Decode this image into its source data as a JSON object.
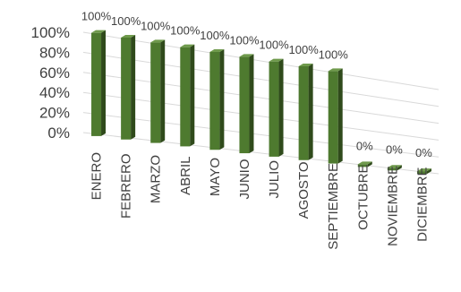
{
  "chart_data": {
    "type": "bar",
    "title": "",
    "xlabel": "",
    "ylabel": "",
    "categories": [
      "ENERO",
      "FEBRERO",
      "MARZO",
      "ABRIL",
      "MAYO",
      "JUNIO",
      "JULIO",
      "AGOSTO",
      "SEPTIEMBRE",
      "OCTUBRE",
      "NOVIEMBRE",
      "DICIEMBRE"
    ],
    "values": [
      1,
      1,
      1,
      1,
      1,
      1,
      1,
      1,
      1,
      0,
      0,
      0
    ],
    "data_labels": [
      "100%",
      "100%",
      "100%",
      "100%",
      "100%",
      "100%",
      "100%",
      "100%",
      "100%",
      "0%",
      "0%",
      "0%"
    ],
    "y_ticks": [
      {
        "value": 0,
        "label": "0%"
      },
      {
        "value": 0.2,
        "label": "20%"
      },
      {
        "value": 0.4,
        "label": "40%"
      },
      {
        "value": 0.6,
        "label": "60%"
      },
      {
        "value": 0.8,
        "label": "80%"
      },
      {
        "value": 1,
        "label": "100%"
      }
    ],
    "ylim": [
      0,
      1
    ],
    "grid": true,
    "legend": "none",
    "perspective_3d": true,
    "bar_color": "#548235"
  }
}
